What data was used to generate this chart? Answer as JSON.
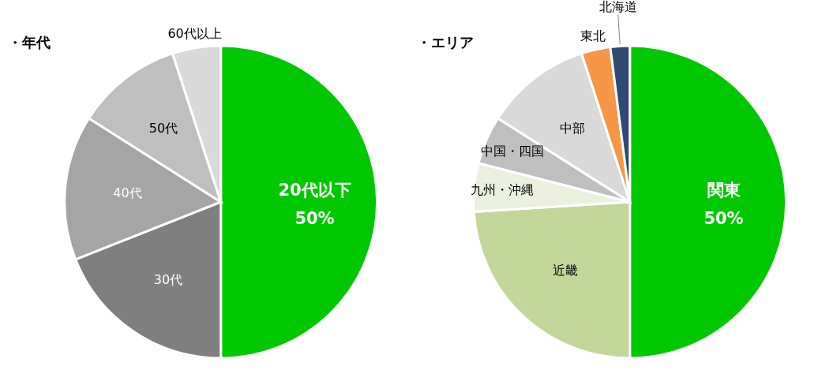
{
  "chart_data": [
    {
      "type": "pie",
      "title": "・年代",
      "categories": [
        "20代以下",
        "30代",
        "40代",
        "50代",
        "60代以上"
      ],
      "values": [
        50,
        19,
        15,
        11,
        5
      ],
      "colors": [
        "#00c800",
        "#7f7f7f",
        "#a5a5a5",
        "#bfbfbf",
        "#d9d9d9"
      ],
      "value_labels": [
        "50%",
        null,
        null,
        null,
        null
      ]
    },
    {
      "type": "pie",
      "title": "・エリア",
      "categories": [
        "関東",
        "近畿",
        "九州・沖縄",
        "中国・四国",
        "中部",
        "東北",
        "北海道"
      ],
      "values": [
        50,
        24,
        5,
        5,
        11,
        3,
        2
      ],
      "colors": [
        "#00c800",
        "#c4d79b",
        "#ebf1de",
        "#bfbfbf",
        "#d9d9d9",
        "#f79646",
        "#2e4a6e"
      ],
      "value_labels": [
        "50%",
        null,
        null,
        null,
        null,
        null,
        null
      ]
    }
  ]
}
